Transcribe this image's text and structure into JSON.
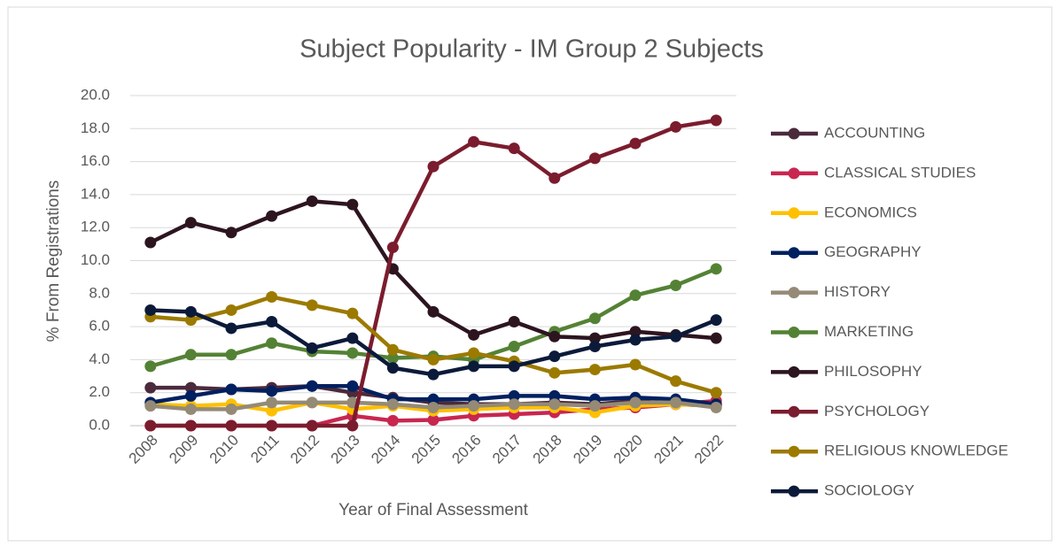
{
  "chart_data": {
    "type": "line",
    "title": "Subject Popularity - IM Group 2 Subjects",
    "x_label": "Year of Final Assessment",
    "y_label": "% From Registrations",
    "categories": [
      "2008",
      "2009",
      "2010",
      "2011",
      "2012",
      "2013",
      "2014",
      "2015",
      "2016",
      "2017",
      "2018",
      "2019",
      "2020",
      "2021",
      "2022"
    ],
    "ylim": [
      0,
      20
    ],
    "yticks": [
      {
        "value": 0,
        "label": "0.0"
      },
      {
        "value": 2,
        "label": "2.0"
      },
      {
        "value": 4,
        "label": "4.0"
      },
      {
        "value": 6,
        "label": "6.0"
      },
      {
        "value": 8,
        "label": "8.0"
      },
      {
        "value": 10,
        "label": "10.0"
      },
      {
        "value": 12,
        "label": "12.0"
      },
      {
        "value": 14,
        "label": "14.0"
      },
      {
        "value": 16,
        "label": "16.0"
      },
      {
        "value": 18,
        "label": "18.0"
      },
      {
        "value": 20,
        "label": "20.0"
      }
    ],
    "grid": true,
    "legend": "right",
    "series": [
      {
        "name": "ACCOUNTING",
        "color": "#4b2a3c",
        "values": [
          2.3,
          2.3,
          2.2,
          2.3,
          2.4,
          2.0,
          1.7,
          1.4,
          1.3,
          1.3,
          1.4,
          1.3,
          1.5,
          1.3,
          1.2
        ]
      },
      {
        "name": "CLASSICAL STUDIES",
        "color": "#c8264f",
        "values": [
          0,
          0,
          0,
          0,
          0,
          0.6,
          0.3,
          0.35,
          0.6,
          0.7,
          0.8,
          1.0,
          1.1,
          1.3,
          1.5
        ]
      },
      {
        "name": "ECONOMICS",
        "color": "#ffc000",
        "values": [
          1.3,
          1.2,
          1.3,
          0.9,
          1.4,
          1.0,
          1.2,
          0.9,
          1.0,
          1.1,
          1.1,
          0.8,
          1.2,
          1.3,
          1.2
        ]
      },
      {
        "name": "GEOGRAPHY",
        "color": "#002060",
        "values": [
          1.4,
          1.8,
          2.2,
          2.1,
          2.4,
          2.4,
          1.6,
          1.6,
          1.6,
          1.8,
          1.8,
          1.6,
          1.7,
          1.6,
          1.3
        ]
      },
      {
        "name": "HISTORY",
        "color": "#948a76",
        "values": [
          1.2,
          1.0,
          1.0,
          1.4,
          1.4,
          1.4,
          1.3,
          1.1,
          1.2,
          1.3,
          1.3,
          1.2,
          1.4,
          1.4,
          1.1
        ]
      },
      {
        "name": "MARKETING",
        "color": "#548235",
        "values": [
          3.6,
          4.3,
          4.3,
          5.0,
          4.5,
          4.4,
          4.1,
          4.2,
          4.0,
          4.8,
          5.7,
          6.5,
          7.9,
          8.5,
          9.5
        ]
      },
      {
        "name": "PHILOSOPHY",
        "color": "#2d1520",
        "values": [
          11.1,
          12.3,
          11.7,
          12.7,
          13.6,
          13.4,
          9.5,
          6.9,
          5.5,
          6.3,
          5.4,
          5.3,
          5.7,
          5.5,
          5.3
        ]
      },
      {
        "name": "PSYCHOLOGY",
        "color": "#7b1c2e",
        "values": [
          0,
          0,
          0,
          0,
          0,
          0,
          10.8,
          15.7,
          17.2,
          16.8,
          15.0,
          16.2,
          17.1,
          18.1,
          18.5
        ]
      },
      {
        "name": "RELIGIOUS KNOWLEDGE",
        "color": "#9c7a00",
        "values": [
          6.6,
          6.4,
          7.0,
          7.8,
          7.3,
          6.8,
          4.6,
          4.0,
          4.4,
          3.9,
          3.2,
          3.4,
          3.7,
          2.7,
          2.0
        ]
      },
      {
        "name": "SOCIOLOGY",
        "color": "#0c1a3a",
        "values": [
          7.0,
          6.9,
          5.9,
          6.3,
          4.7,
          5.3,
          3.5,
          3.1,
          3.6,
          3.6,
          4.2,
          4.8,
          5.2,
          5.4,
          6.4
        ]
      }
    ]
  }
}
